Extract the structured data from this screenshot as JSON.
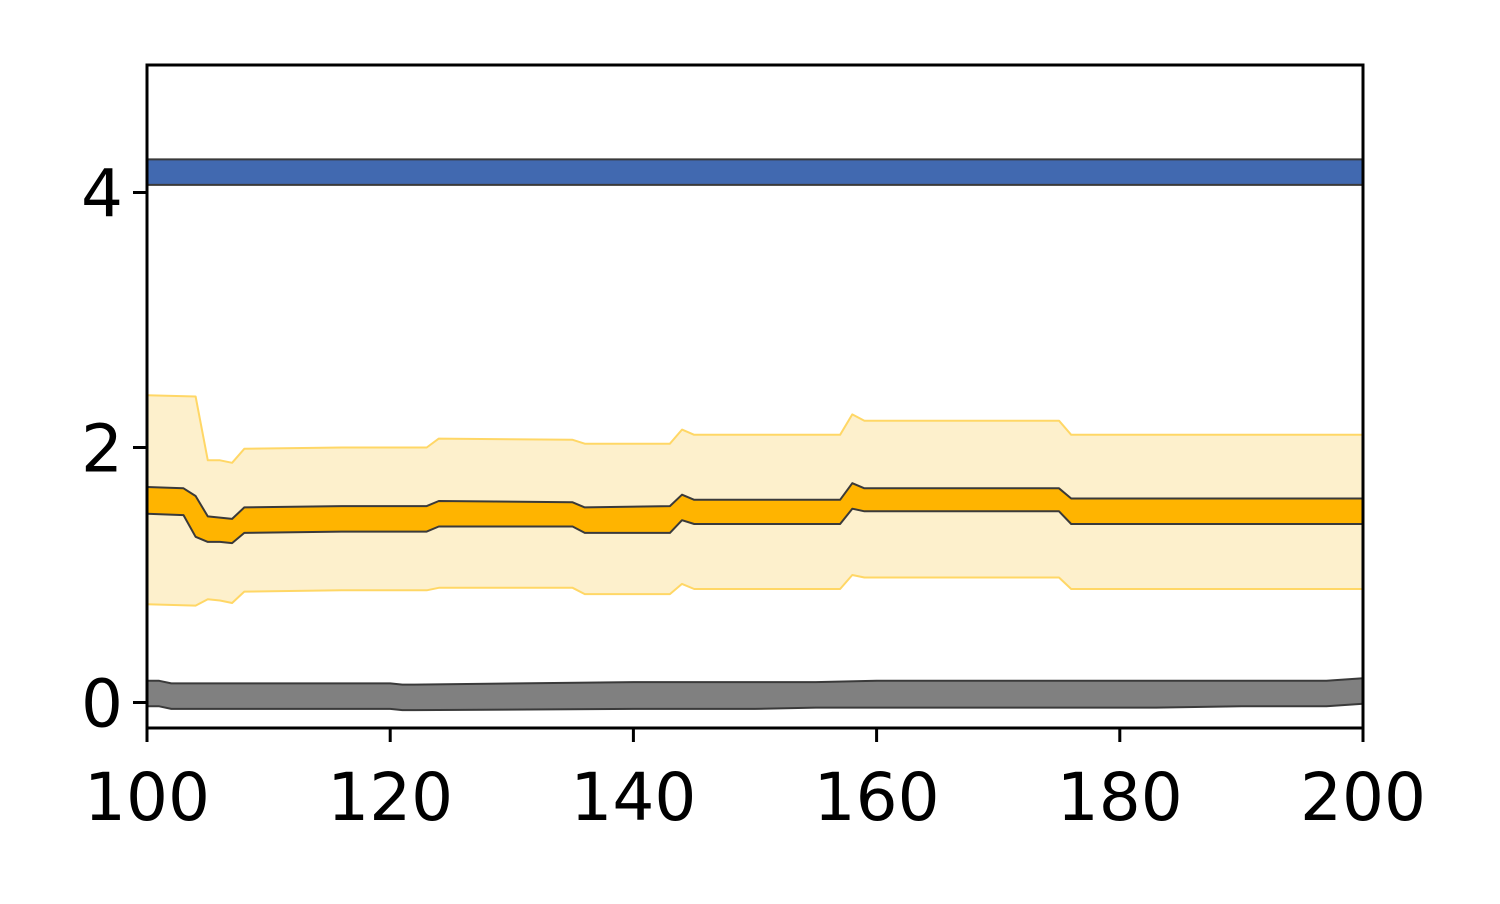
{
  "chart_data": {
    "type": "area",
    "title": "",
    "xlabel": "",
    "ylabel": "",
    "xlim": [
      100,
      200
    ],
    "ylim": [
      -0.2,
      5.0
    ],
    "grid": false,
    "legend": "none",
    "x_ticks": [
      100,
      120,
      140,
      160,
      180,
      200
    ],
    "y_ticks": [
      0,
      2,
      4
    ],
    "x_tick_labels": [
      "100",
      "120",
      "140",
      "160",
      "180",
      "200"
    ],
    "y_tick_labels": [
      "0",
      "2",
      "4"
    ],
    "series": [
      {
        "key": "blue-band",
        "color": "#4169b0",
        "edge_color": "#3a3a3a",
        "x": [
          100,
          200
        ],
        "y": [
          4.16,
          4.16
        ],
        "lower": [
          4.06,
          4.06
        ],
        "upper": [
          4.26,
          4.26
        ]
      },
      {
        "key": "orange-outer-band",
        "color": "#fdf0cc",
        "edge_color": "#ffd766",
        "x": [
          100,
          104,
          105,
          106,
          107,
          108,
          116,
          123,
          124,
          135,
          136,
          143,
          144,
          145,
          157,
          158,
          159,
          175,
          176,
          200
        ],
        "upper": [
          2.41,
          2.4,
          1.9,
          1.9,
          1.88,
          1.99,
          2.0,
          2.0,
          2.07,
          2.06,
          2.03,
          2.03,
          2.14,
          2.1,
          2.1,
          2.26,
          2.21,
          2.21,
          2.1,
          2.1
        ],
        "lower": [
          0.77,
          0.76,
          0.81,
          0.8,
          0.78,
          0.87,
          0.88,
          0.88,
          0.9,
          0.9,
          0.85,
          0.85,
          0.93,
          0.89,
          0.89,
          1.0,
          0.98,
          0.98,
          0.89,
          0.89
        ]
      },
      {
        "key": "orange-band",
        "color": "#ffb400",
        "edge_color": "#3a3a3a",
        "x": [
          100,
          103,
          104,
          105,
          106,
          107,
          108,
          116,
          123,
          124,
          135,
          136,
          143,
          144,
          145,
          157,
          158,
          159,
          175,
          176,
          200
        ],
        "upper": [
          1.69,
          1.68,
          1.62,
          1.46,
          1.45,
          1.44,
          1.53,
          1.54,
          1.54,
          1.58,
          1.57,
          1.53,
          1.54,
          1.63,
          1.59,
          1.59,
          1.72,
          1.68,
          1.68,
          1.6,
          1.6
        ],
        "lower": [
          1.48,
          1.47,
          1.3,
          1.26,
          1.26,
          1.25,
          1.33,
          1.34,
          1.34,
          1.38,
          1.38,
          1.33,
          1.33,
          1.43,
          1.4,
          1.4,
          1.52,
          1.5,
          1.5,
          1.4,
          1.4
        ]
      },
      {
        "key": "gray-band",
        "color": "#808080",
        "edge_color": "#3a3a3a",
        "x": [
          100,
          101,
          102,
          120,
          121,
          122,
          140,
          150,
          155,
          160,
          183,
          190,
          197,
          200
        ],
        "upper": [
          0.17,
          0.17,
          0.15,
          0.15,
          0.14,
          0.14,
          0.16,
          0.16,
          0.16,
          0.17,
          0.17,
          0.17,
          0.17,
          0.19
        ],
        "lower": [
          -0.03,
          -0.03,
          -0.05,
          -0.05,
          -0.06,
          -0.06,
          -0.05,
          -0.05,
          -0.04,
          -0.04,
          -0.04,
          -0.03,
          -0.03,
          -0.01
        ]
      }
    ]
  }
}
